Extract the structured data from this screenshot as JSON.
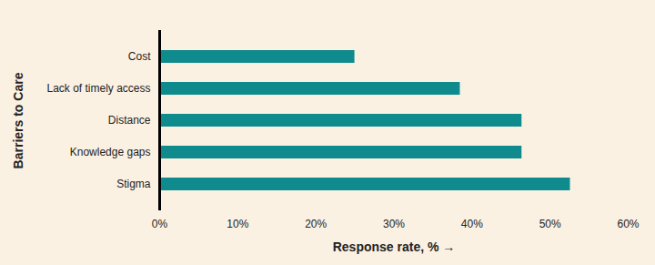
{
  "chart_data": {
    "type": "bar",
    "orientation": "horizontal",
    "categories": [
      "Cost",
      "Lack of timely access",
      "Distance",
      "Knowledge gaps",
      "Stigma"
    ],
    "values": [
      25,
      38.5,
      46.4,
      46.4,
      52.6
    ],
    "color": "#0f8b8d",
    "xlabel": "Response rate, %",
    "ylabel": "Barriers to Care",
    "xlim": [
      0,
      60
    ],
    "xticks": [
      {
        "value": 0,
        "label": "0%"
      },
      {
        "value": 10,
        "label": "10%"
      },
      {
        "value": 20,
        "label": "20%"
      },
      {
        "value": 30,
        "label": "30%"
      },
      {
        "value": 40,
        "label": "40%"
      },
      {
        "value": 50,
        "label": "50%"
      },
      {
        "value": 60,
        "label": "60%"
      }
    ],
    "grid": false
  }
}
